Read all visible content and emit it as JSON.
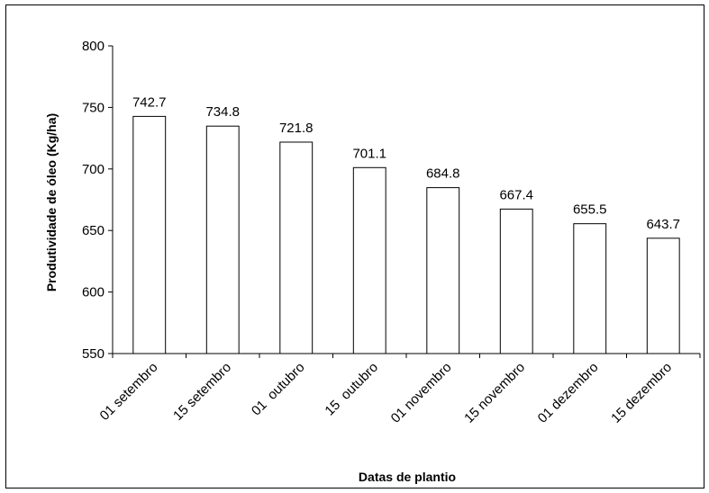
{
  "chart_data": {
    "type": "bar",
    "title": "",
    "xlabel": "Datas de plantio",
    "ylabel": "Produtividade de óleo (Kg/ha)",
    "categories": [
      "01 setembro",
      "15 setembro",
      "01  outubro",
      "15  outubro",
      "01 novembro",
      "15 novembro",
      "01 dezembro",
      "15 dezembro"
    ],
    "values": [
      742.7,
      734.8,
      721.8,
      701.1,
      684.8,
      667.4,
      655.5,
      643.7
    ],
    "data_labels": [
      "742.7",
      "734.8",
      "721.8",
      "701.1",
      "684.8",
      "667.4",
      "655.5",
      "643.7"
    ],
    "ylim": [
      550,
      800
    ],
    "yticks": [
      550,
      600,
      650,
      700,
      750,
      800
    ],
    "ytick_labels": [
      "550",
      "600",
      "650",
      "700",
      "750",
      "800"
    ],
    "grid": false,
    "legend": "none",
    "bar_fill": "#ffffff",
    "bar_stroke": "#000000"
  }
}
